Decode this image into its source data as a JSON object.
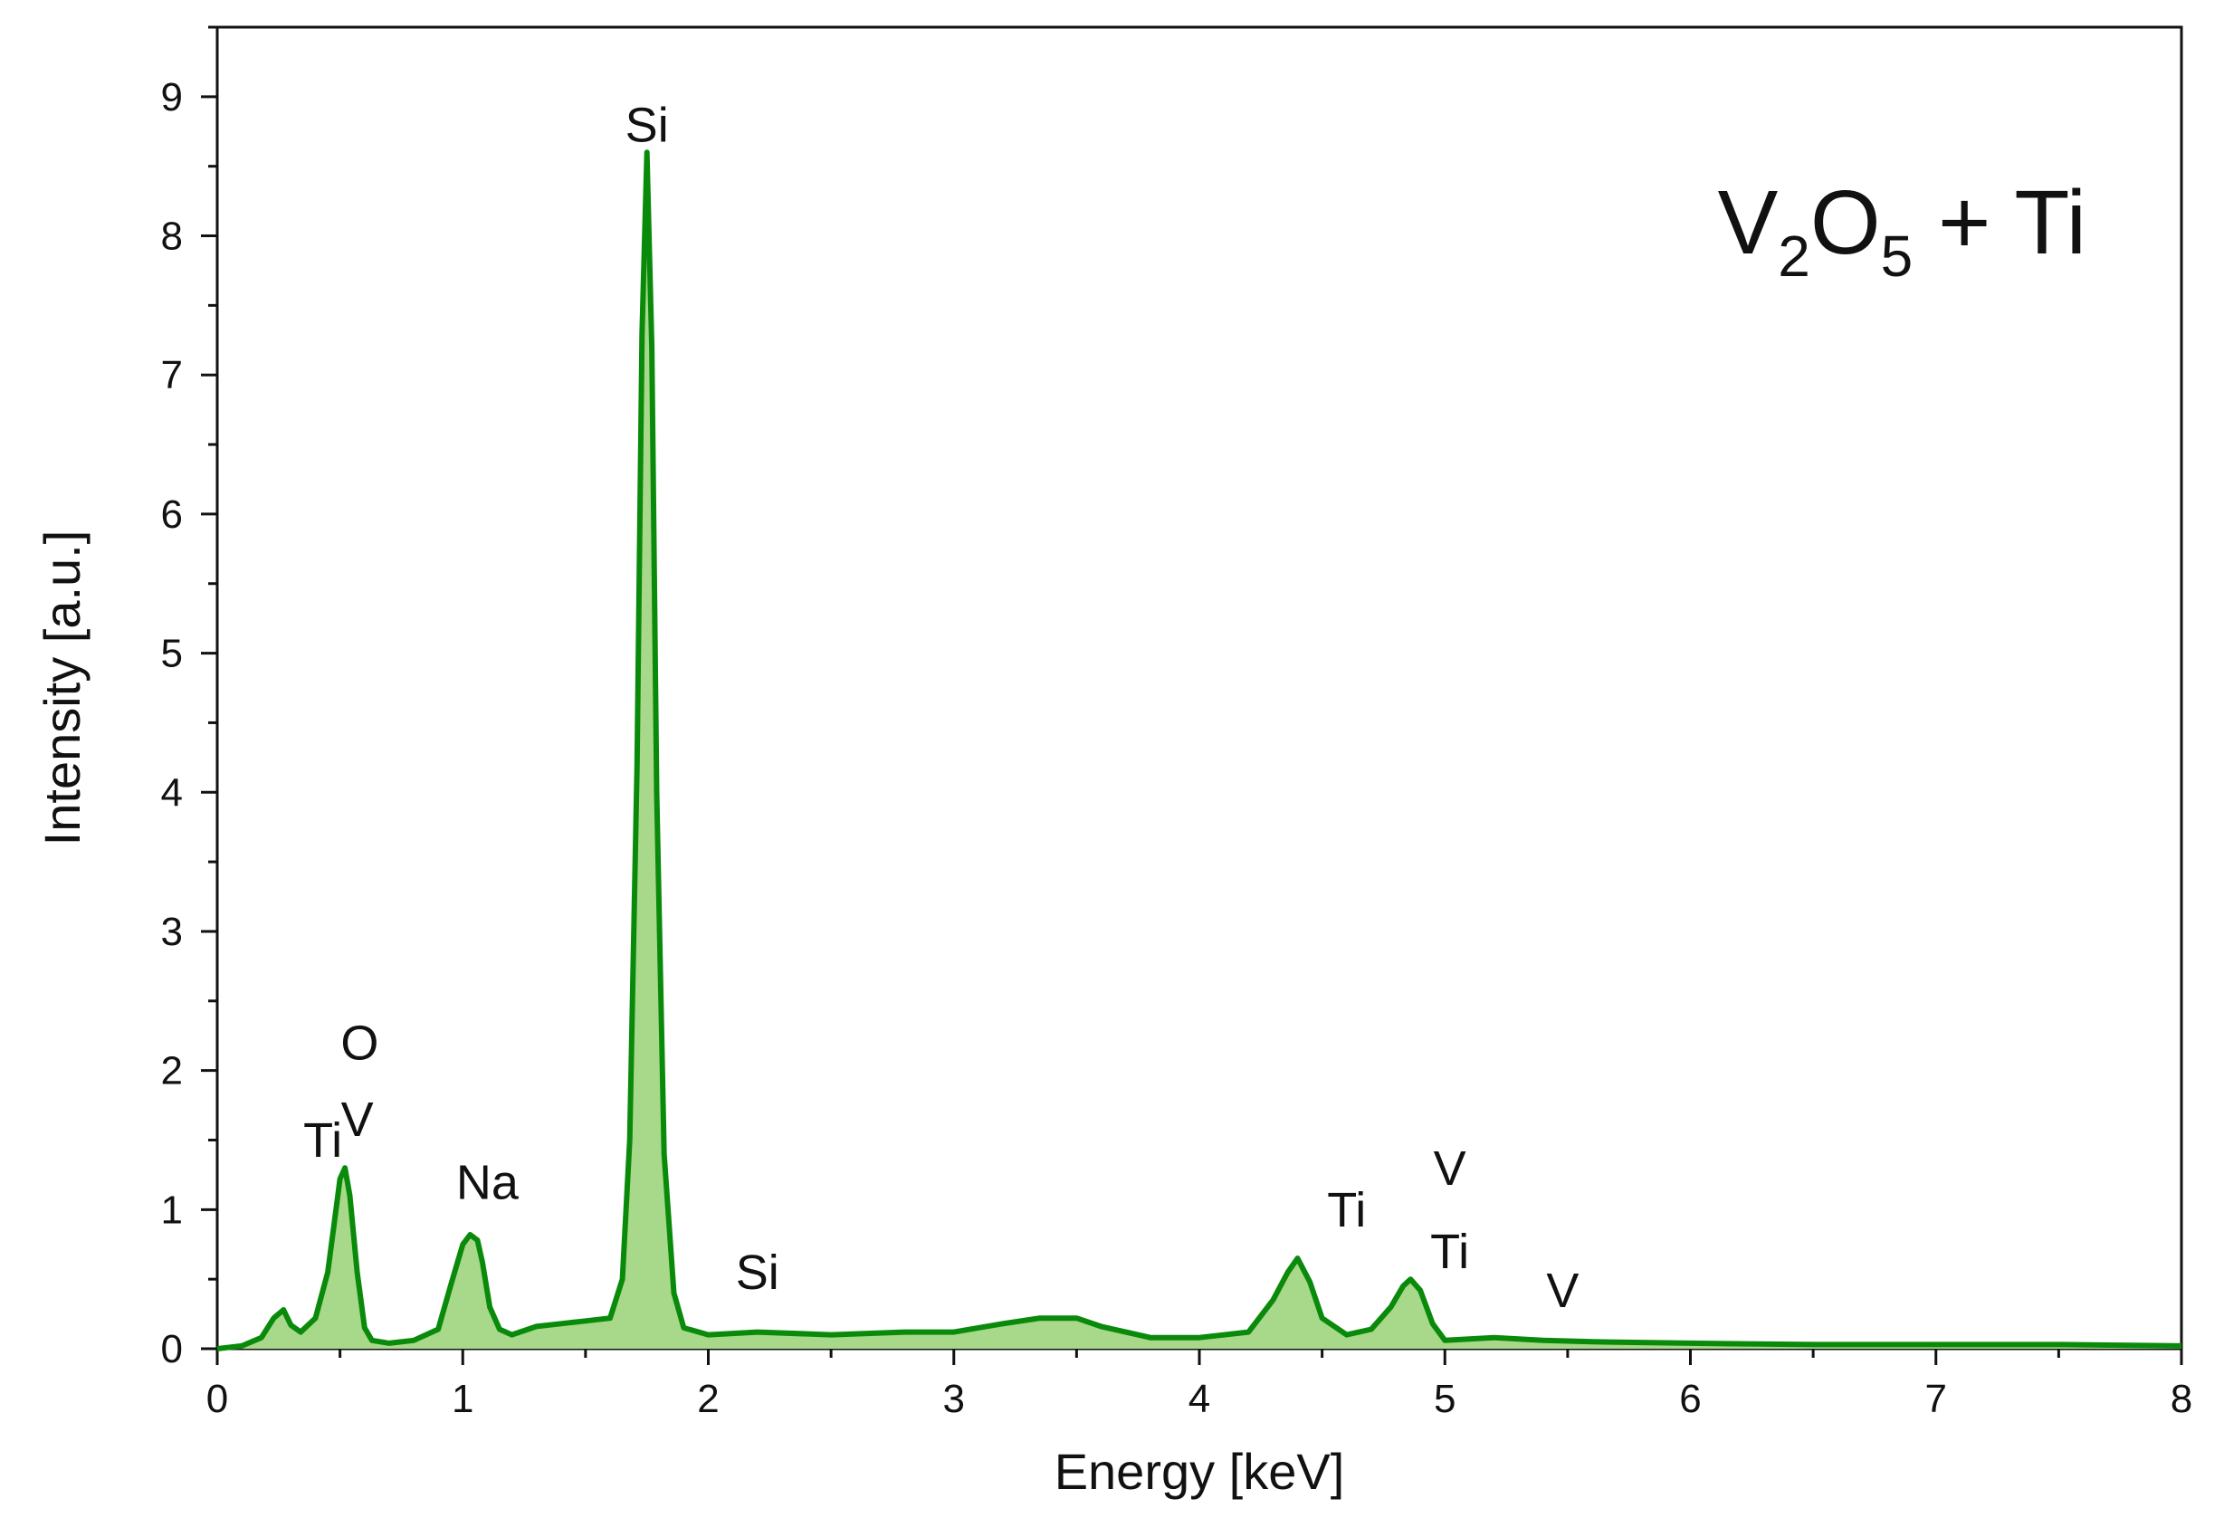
{
  "chart_data": {
    "type": "area",
    "xlabel": "Energy [keV]",
    "ylabel": "Intensity [a.u.]",
    "xlim": [
      0,
      8
    ],
    "ylim": [
      0,
      9.5
    ],
    "x_ticks": [
      "0",
      "1",
      "2",
      "3",
      "4",
      "5",
      "6",
      "7",
      "8"
    ],
    "y_ticks": [
      "0",
      "1",
      "2",
      "3",
      "4",
      "5",
      "6",
      "7",
      "8",
      "9"
    ],
    "grid": false,
    "colors": {
      "line": "#0a8a0a",
      "fill": "#a8d88a"
    },
    "sample": {
      "main1": "V",
      "sub1": "2",
      "main2": "O",
      "sub2": "5",
      "rest": " + Ti"
    },
    "series": [
      {
        "x": [
          0,
          0.1,
          0.18,
          0.23,
          0.27,
          0.3,
          0.34,
          0.4,
          0.45,
          0.48,
          0.5,
          0.52,
          0.54,
          0.57,
          0.6,
          0.63,
          0.7,
          0.8,
          0.9,
          0.95,
          1.0,
          1.03,
          1.06,
          1.08,
          1.11,
          1.15,
          1.2,
          1.3,
          1.4,
          1.5,
          1.6,
          1.65,
          1.68,
          1.71,
          1.73,
          1.75,
          1.77,
          1.79,
          1.82,
          1.86,
          1.9,
          2.0,
          2.2,
          2.5,
          2.8,
          3.0,
          3.2,
          3.35,
          3.5,
          3.6,
          3.8,
          4.0,
          4.2,
          4.3,
          4.36,
          4.4,
          4.45,
          4.5,
          4.6,
          4.7,
          4.78,
          4.83,
          4.86,
          4.9,
          4.95,
          5.0,
          5.2,
          5.4,
          5.6,
          6.0,
          6.5,
          7.0,
          7.5,
          8.0
        ],
        "y": [
          0.0,
          0.02,
          0.08,
          0.22,
          0.28,
          0.17,
          0.12,
          0.22,
          0.55,
          0.95,
          1.22,
          1.3,
          1.1,
          0.55,
          0.15,
          0.06,
          0.04,
          0.06,
          0.14,
          0.45,
          0.75,
          0.82,
          0.78,
          0.62,
          0.3,
          0.14,
          0.1,
          0.16,
          0.18,
          0.2,
          0.22,
          0.5,
          1.5,
          4.2,
          7.3,
          8.6,
          7.2,
          4.0,
          1.4,
          0.4,
          0.15,
          0.1,
          0.12,
          0.1,
          0.12,
          0.12,
          0.18,
          0.22,
          0.22,
          0.16,
          0.08,
          0.08,
          0.12,
          0.35,
          0.55,
          0.65,
          0.48,
          0.22,
          0.1,
          0.14,
          0.3,
          0.45,
          0.5,
          0.42,
          0.18,
          0.06,
          0.08,
          0.06,
          0.05,
          0.04,
          0.03,
          0.03,
          0.03,
          0.02
        ]
      }
    ],
    "annotations": [
      {
        "text": "Si",
        "x": 1.75,
        "y": 8.6
      },
      {
        "text": "O",
        "x": 0.58,
        "y": 2.0
      },
      {
        "text": "V",
        "x": 0.57,
        "y": 1.45
      },
      {
        "text": "Ti",
        "x": 0.43,
        "y": 1.3
      },
      {
        "text": "Na",
        "x": 1.1,
        "y": 1.0
      },
      {
        "text": "Si",
        "x": 2.2,
        "y": 0.35
      },
      {
        "text": "Ti",
        "x": 4.6,
        "y": 0.8
      },
      {
        "text": "V",
        "x": 5.02,
        "y": 1.1
      },
      {
        "text": "Ti",
        "x": 5.02,
        "y": 0.5
      },
      {
        "text": "V",
        "x": 5.48,
        "y": 0.22
      }
    ]
  }
}
